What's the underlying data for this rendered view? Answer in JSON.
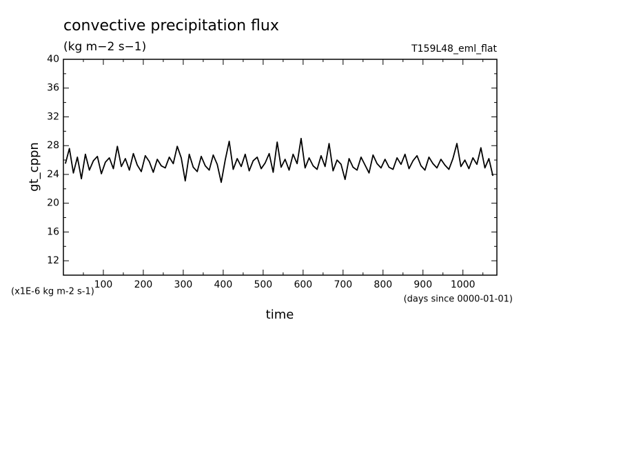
{
  "chart_data": {
    "type": "line",
    "title": "convective precipitation flux",
    "subtitle": "(kg m−2 s−1)",
    "annotation": "T159L48_eml_flat",
    "ylabel": "gt_cppn",
    "yunits": "(x1E-6 kg m-2 s-1)",
    "xlabel": "time",
    "xunits": "(days since 0000-01-01)",
    "xlim": [
      0,
      1085
    ],
    "ylim": [
      10,
      40
    ],
    "xticks": [
      100,
      200,
      300,
      400,
      500,
      600,
      700,
      800,
      900,
      1000
    ],
    "yticks": [
      12,
      16,
      20,
      24,
      28,
      32,
      36,
      40
    ],
    "xminorticks": [
      50,
      150,
      250,
      350,
      450,
      550,
      650,
      750,
      850,
      950,
      1050
    ],
    "yminorticks": [
      14,
      18,
      22,
      26,
      30,
      34,
      38
    ],
    "color": "#000000",
    "x": [
      5,
      15,
      25,
      35,
      45,
      55,
      65,
      75,
      85,
      95,
      105,
      115,
      125,
      135,
      145,
      155,
      165,
      175,
      185,
      195,
      205,
      215,
      225,
      235,
      245,
      255,
      265,
      275,
      285,
      295,
      305,
      315,
      325,
      335,
      345,
      355,
      365,
      375,
      385,
      395,
      405,
      415,
      425,
      435,
      445,
      455,
      465,
      475,
      485,
      495,
      505,
      515,
      525,
      535,
      545,
      555,
      565,
      575,
      585,
      595,
      605,
      615,
      625,
      635,
      645,
      655,
      665,
      675,
      685,
      695,
      705,
      715,
      725,
      735,
      745,
      755,
      765,
      775,
      785,
      795,
      805,
      815,
      825,
      835,
      845,
      855,
      865,
      875,
      885,
      895,
      905,
      915,
      925,
      935,
      945,
      955,
      965,
      975,
      985,
      995,
      1005,
      1015,
      1025,
      1035,
      1045,
      1055,
      1065,
      1075
    ],
    "values": [
      25.5,
      27.6,
      24.2,
      26.4,
      23.4,
      26.8,
      24.6,
      25.9,
      26.5,
      24.1,
      25.7,
      26.3,
      24.8,
      27.9,
      25.1,
      26.2,
      24.6,
      26.9,
      25.3,
      24.4,
      26.6,
      25.8,
      24.3,
      26.1,
      25.2,
      24.9,
      26.4,
      25.5,
      27.9,
      26.3,
      23.1,
      26.8,
      25.0,
      24.4,
      26.5,
      25.2,
      24.6,
      26.7,
      25.4,
      22.9,
      26.0,
      28.6,
      24.7,
      26.2,
      25.1,
      26.8,
      24.5,
      25.9,
      26.4,
      24.8,
      25.6,
      26.9,
      24.3,
      28.5,
      25.0,
      26.1,
      24.6,
      26.8,
      25.5,
      29.0,
      24.9,
      26.3,
      25.2,
      24.7,
      26.6,
      25.1,
      28.3,
      24.5,
      26.0,
      25.4,
      23.3,
      26.2,
      25.0,
      24.6,
      26.4,
      25.3,
      24.2,
      26.7,
      25.5,
      24.9,
      26.1,
      25.0,
      24.7,
      26.3,
      25.4,
      26.8,
      24.8,
      25.9,
      26.6,
      25.2,
      24.6,
      26.4,
      25.5,
      24.9,
      26.1,
      25.3,
      24.7,
      26.2,
      28.3,
      25.1,
      26.0,
      24.8,
      26.3,
      25.4,
      27.7,
      24.9,
      26.2,
      23.8
    ]
  }
}
